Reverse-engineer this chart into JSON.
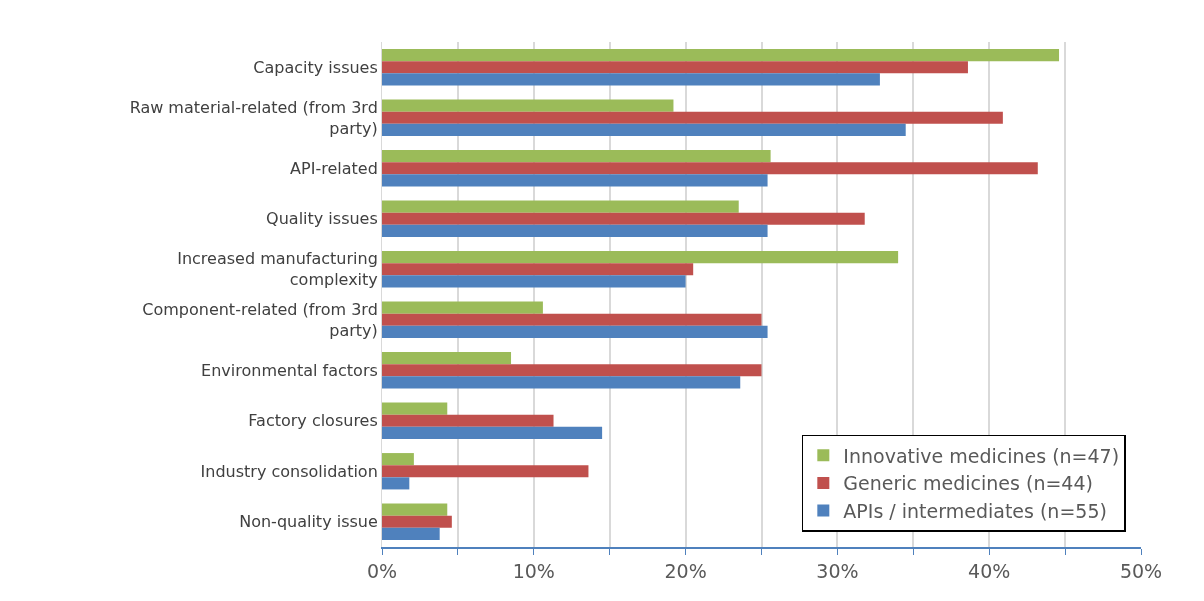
{
  "chart_data": {
    "type": "bar",
    "orientation": "horizontal",
    "categories": [
      "Capacity issues",
      "Raw material-related (from 3rd party)",
      "API-related",
      "Quality issues",
      "Increased manufacturing complexity",
      "Component-related (from 3rd party)",
      "Environmental factors",
      "Factory closures",
      "Industry consolidation",
      "Non-quality issue"
    ],
    "series": [
      {
        "name": "Innovative medicines (n=47)",
        "color": "#9bbb59",
        "values": [
          44.6,
          19.2,
          25.6,
          23.5,
          34.0,
          10.6,
          8.5,
          4.3,
          2.1,
          4.3
        ]
      },
      {
        "name": "Generic medicines (n=44)",
        "color": "#c0504d",
        "values": [
          38.6,
          40.9,
          43.2,
          31.8,
          20.5,
          25.0,
          25.0,
          11.3,
          13.6,
          4.6
        ]
      },
      {
        "name": "APIs / intermediates (n=55)",
        "color": "#4f81bd",
        "values": [
          32.8,
          34.5,
          25.4,
          25.4,
          20.0,
          25.4,
          23.6,
          14.5,
          1.8,
          3.8
        ]
      }
    ],
    "xlim": [
      0,
      50
    ],
    "xticks": [
      {
        "value": 0,
        "label": "0%"
      },
      {
        "value": 5,
        "label": null
      },
      {
        "value": 10,
        "label": "10%"
      },
      {
        "value": 15,
        "label": null
      },
      {
        "value": 20,
        "label": "20%"
      },
      {
        "value": 25,
        "label": null
      },
      {
        "value": 30,
        "label": "30%"
      },
      {
        "value": 35,
        "label": null
      },
      {
        "value": 40,
        "label": "40%"
      },
      {
        "value": 45,
        "label": null
      },
      {
        "value": 50,
        "label": "50%"
      }
    ],
    "grid": "x",
    "legend": "bottom right"
  }
}
